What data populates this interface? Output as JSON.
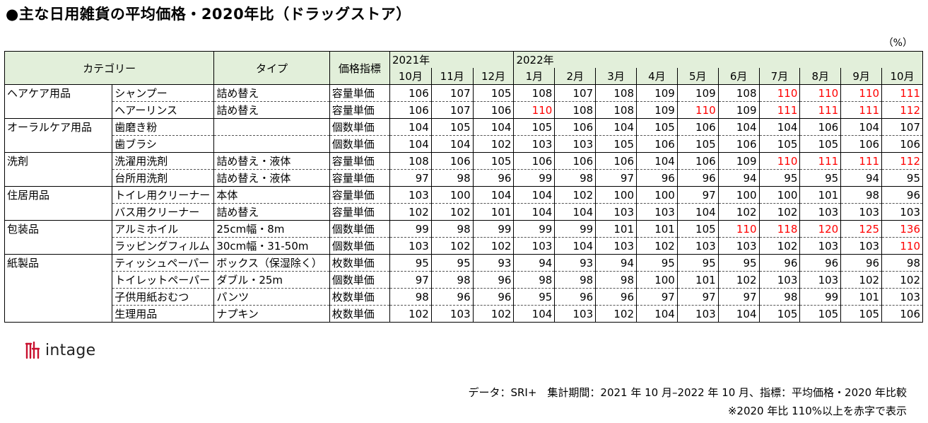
{
  "title": "●主な日用雑貨の平均価格・2020年比（ドラッグストア）",
  "unit_label": "（%）",
  "logo_text": "intage",
  "footnote_source": "データ：SRI+　集計期間：2021 年 10 月–2022 年 10 月、指標：平均価格・2020 年比較",
  "footnote_red": "※2020 年比 110%以上を赤字で表示",
  "colors": {
    "header_bg": "#e2efda",
    "highlight": "#ff0000",
    "logo_red": "#c8102e"
  },
  "headers": {
    "category": "カテゴリー",
    "type": "タイプ",
    "indicator": "価格指標",
    "year1": "2021年",
    "year2": "2022年"
  },
  "months": [
    "10月",
    "11月",
    "12月",
    "1月",
    "2月",
    "3月",
    "4月",
    "5月",
    "6月",
    "7月",
    "8月",
    "9月",
    "10月"
  ],
  "chart_data": {
    "type": "table",
    "title": "●主な日用雑貨の平均価格・2020年比（ドラッグストア）",
    "red_threshold": 110,
    "rows": [
      {
        "category": "ヘアケア用品",
        "item": "シャンプー",
        "type": "詰め替え",
        "indicator": "容量単価",
        "values": [
          106,
          107,
          105,
          108,
          107,
          108,
          109,
          109,
          108,
          110,
          110,
          110,
          111
        ]
      },
      {
        "category": "",
        "item": "ヘアーリンス",
        "type": "詰め替え",
        "indicator": "容量単価",
        "values": [
          106,
          107,
          106,
          110,
          108,
          108,
          109,
          110,
          109,
          111,
          111,
          111,
          112
        ]
      },
      {
        "category": "オーラルケア用品",
        "item": "歯磨き粉",
        "type": "",
        "indicator": "個数単価",
        "values": [
          104,
          105,
          104,
          105,
          106,
          104,
          105,
          106,
          104,
          104,
          106,
          104,
          107
        ]
      },
      {
        "category": "",
        "item": "歯ブラシ",
        "type": "",
        "indicator": "個数単価",
        "values": [
          104,
          104,
          102,
          103,
          103,
          105,
          106,
          105,
          106,
          105,
          105,
          106,
          106
        ]
      },
      {
        "category": "洗剤",
        "item": "洗濯用洗剤",
        "type": "詰め替え・液体",
        "indicator": "容量単価",
        "values": [
          108,
          106,
          105,
          106,
          106,
          106,
          104,
          106,
          109,
          110,
          111,
          111,
          112
        ]
      },
      {
        "category": "",
        "item": "台所用洗剤",
        "type": "詰め替え・液体",
        "indicator": "容量単価",
        "values": [
          97,
          98,
          96,
          99,
          98,
          97,
          96,
          96,
          94,
          95,
          95,
          94,
          95
        ]
      },
      {
        "category": "住居用品",
        "item": "トイレ用クリーナー",
        "type": "本体",
        "indicator": "容量単価",
        "values": [
          103,
          100,
          104,
          104,
          102,
          100,
          100,
          97,
          100,
          100,
          101,
          98,
          96
        ]
      },
      {
        "category": "",
        "item": "バス用クリーナー",
        "type": "詰め替え",
        "indicator": "容量単価",
        "values": [
          102,
          102,
          101,
          104,
          104,
          103,
          103,
          104,
          102,
          102,
          103,
          103,
          103
        ]
      },
      {
        "category": "包装品",
        "item": "アルミホイル",
        "type": "25cm幅・8m",
        "indicator": "個数単価",
        "values": [
          99,
          98,
          99,
          99,
          99,
          101,
          101,
          105,
          110,
          118,
          120,
          125,
          136
        ]
      },
      {
        "category": "",
        "item": "ラッピングフィルム",
        "type": "30cm幅・31-50m",
        "indicator": "個数単価",
        "values": [
          103,
          102,
          102,
          103,
          104,
          103,
          102,
          103,
          103,
          102,
          103,
          103,
          110
        ]
      },
      {
        "category": "紙製品",
        "item": "ティッシュペーパー",
        "type": "ボックス（保湿除く）",
        "indicator": "枚数単価",
        "values": [
          95,
          95,
          93,
          94,
          93,
          94,
          95,
          95,
          95,
          96,
          96,
          96,
          98
        ]
      },
      {
        "category": "",
        "item": "トイレットペーパー",
        "type": "ダブル・25m",
        "indicator": "個数単価",
        "values": [
          97,
          98,
          96,
          98,
          98,
          98,
          100,
          101,
          102,
          103,
          103,
          102,
          102
        ]
      },
      {
        "category": "",
        "item": "子供用紙おむつ",
        "type": "パンツ",
        "indicator": "枚数単価",
        "values": [
          98,
          96,
          96,
          95,
          96,
          96,
          97,
          97,
          97,
          98,
          99,
          101,
          103
        ]
      },
      {
        "category": "",
        "item": "生理用品",
        "type": "ナプキン",
        "indicator": "枚数単価",
        "values": [
          102,
          103,
          102,
          104,
          103,
          102,
          104,
          103,
          104,
          105,
          105,
          105,
          106
        ]
      }
    ]
  }
}
